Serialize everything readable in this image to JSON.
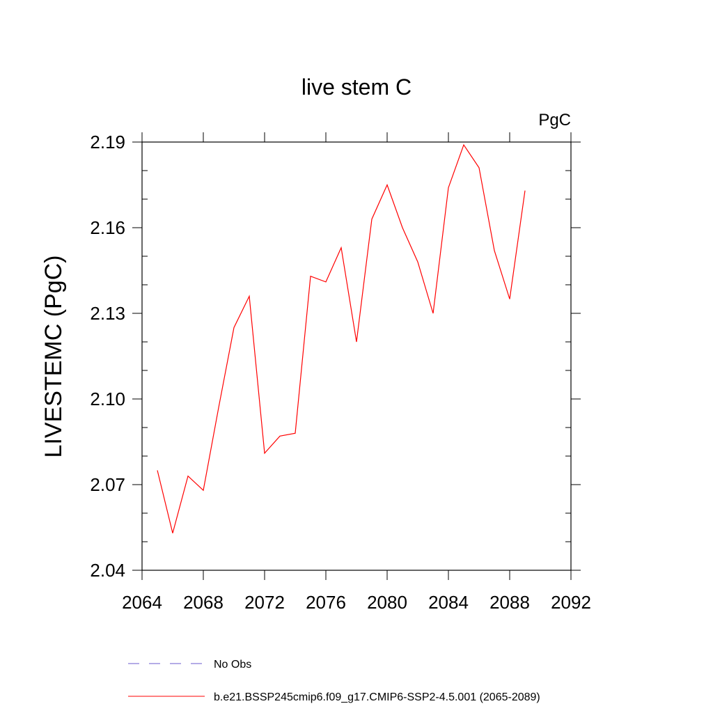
{
  "chart_data": {
    "type": "line",
    "title": "live stem C",
    "units_label": "PgC",
    "ylabel": "LIVESTEMC  (PgC)",
    "xlabel": "",
    "xlim": [
      2064,
      2092
    ],
    "ylim": [
      2.04,
      2.19
    ],
    "x_ticks": [
      2064,
      2068,
      2072,
      2076,
      2080,
      2084,
      2088,
      2092
    ],
    "x_tick_labels": [
      "2064",
      "2068",
      "2072",
      "2076",
      "2080",
      "2084",
      "2088",
      "2092"
    ],
    "y_ticks": [
      2.04,
      2.07,
      2.1,
      2.13,
      2.16,
      2.19
    ],
    "y_tick_labels": [
      "2.04",
      "2.07",
      "2.10",
      "2.13",
      "2.16",
      "2.19"
    ],
    "grid": false,
    "legend_position": "bottom",
    "legend": [
      {
        "name": "No Obs",
        "color": "#6a5acd",
        "style": "dashed"
      },
      {
        "name": "b.e21.BSSP245cmip6.f09_g17.CMIP6-SSP2-4.5.001 (2065-2089)",
        "color": "#ff0000",
        "style": "solid"
      }
    ],
    "series": [
      {
        "name": "b.e21.BSSP245cmip6.f09_g17.CMIP6-SSP2-4.5.001 (2065-2089)",
        "color": "#ff0000",
        "x": [
          2065,
          2066,
          2067,
          2068,
          2069,
          2070,
          2071,
          2072,
          2073,
          2074,
          2075,
          2076,
          2077,
          2078,
          2079,
          2080,
          2081,
          2082,
          2083,
          2084,
          2085,
          2086,
          2087,
          2088,
          2089
        ],
        "values": [
          2.075,
          2.053,
          2.073,
          2.068,
          2.097,
          2.125,
          2.136,
          2.081,
          2.087,
          2.088,
          2.143,
          2.141,
          2.153,
          2.12,
          2.163,
          2.175,
          2.16,
          2.148,
          2.13,
          2.174,
          2.189,
          2.181,
          2.152,
          2.135,
          2.173
        ]
      }
    ]
  }
}
